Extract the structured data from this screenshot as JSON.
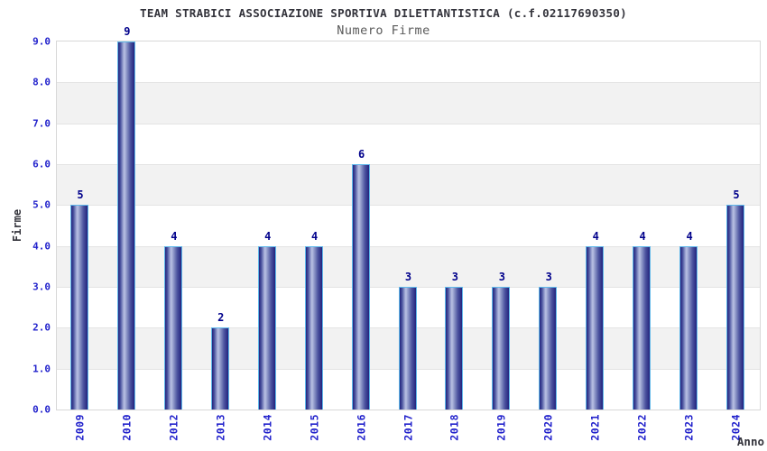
{
  "chart_data": {
    "type": "bar",
    "title": "TEAM STRABICI ASSOCIAZIONE SPORTIVA DILETTANTISTICA (c.f.02117690350)",
    "subtitle": "Numero Firme",
    "xlabel": "Anno",
    "ylabel": "Firme",
    "categories": [
      "2009",
      "2010",
      "2012",
      "2013",
      "2014",
      "2015",
      "2016",
      "2017",
      "2018",
      "2019",
      "2020",
      "2021",
      "2022",
      "2023",
      "2024"
    ],
    "values": [
      5,
      9,
      4,
      2,
      4,
      4,
      6,
      3,
      3,
      3,
      3,
      4,
      4,
      4,
      5
    ],
    "ylim": [
      0,
      9
    ],
    "ytick_step": 1,
    "ytick_labels": [
      "0.0",
      "1.0",
      "2.0",
      "3.0",
      "4.0",
      "5.0",
      "6.0",
      "7.0",
      "8.0",
      "9.0"
    ],
    "grid": "horizontal-bands-alternating",
    "legend": "none",
    "colors": {
      "bar_dark": "#23237d",
      "bar_light": "#b9c1e3",
      "bar_outline": "#5fb8ea",
      "tick_label": "#2323cc",
      "value_label": "#00008b",
      "band": "#f2f2f2",
      "gridline": "#e4e4e4",
      "plot_border": "#d8d8d8",
      "title": "#33333b",
      "subtitle": "#5a5a5a",
      "axis_title": "#33333b"
    }
  }
}
